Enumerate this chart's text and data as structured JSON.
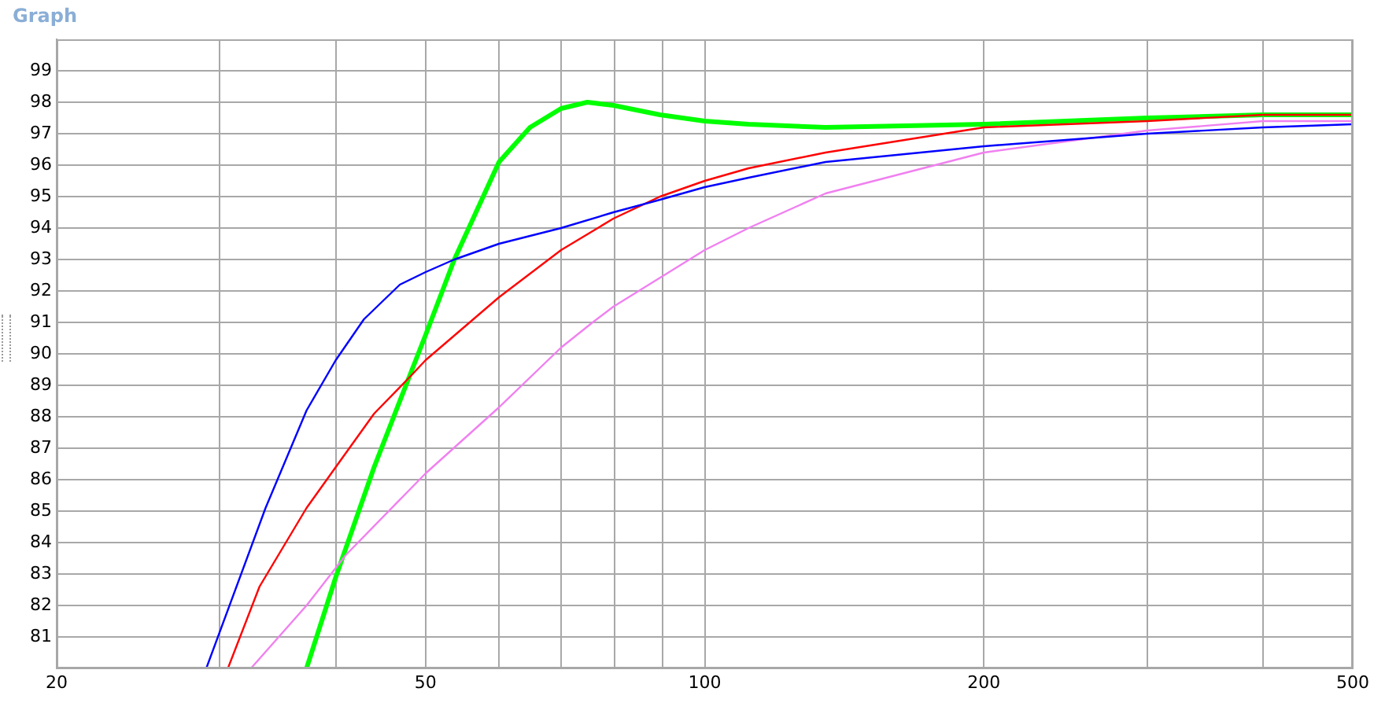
{
  "chart_data": {
    "type": "line",
    "title": "Graph",
    "log": "x",
    "xlim": [
      20,
      500
    ],
    "xticks": [
      20,
      {
        "value": 30,
        "label": null
      },
      {
        "value": 40,
        "label": null
      },
      50,
      {
        "value": 60,
        "label": null
      },
      {
        "value": 70,
        "label": null
      },
      {
        "value": 80,
        "label": null
      },
      {
        "value": 90,
        "label": null
      },
      100,
      200,
      {
        "value": 300,
        "label": null
      },
      {
        "value": 400,
        "label": null
      },
      500
    ],
    "ylim": [
      80,
      100
    ],
    "yticks": [
      81,
      82,
      83,
      84,
      85,
      86,
      87,
      88,
      89,
      90,
      91,
      92,
      93,
      94,
      95,
      96,
      97,
      98,
      99
    ],
    "grid": true,
    "legend": false,
    "marker": "none",
    "line_style": "solid",
    "series": [
      {
        "color": "#0000ff",
        "x": [
          29,
          33.6,
          37.2,
          40,
          42.9,
          46.9,
          50,
          53.7,
          60,
          70,
          79.7,
          89.5,
          100,
          111.5,
          135,
          200,
          300,
          400,
          500
        ],
        "values": [
          80,
          85.1,
          88.2,
          89.8,
          91.1,
          92.2,
          92.6,
          93,
          93.5,
          94,
          94.5,
          94.9,
          95.3,
          95.6,
          96.1,
          96.6,
          97,
          97.2,
          97.3
        ]
      },
      {
        "color": "#ff0000",
        "x": [
          30.6,
          33.1,
          37.2,
          40,
          44,
          48.2,
          50,
          60,
          70,
          79.7,
          89.5,
          100,
          111.5,
          135,
          200,
          300,
          400,
          500
        ],
        "values": [
          80,
          82.6,
          85.1,
          86.4,
          88.1,
          89.3,
          89.8,
          91.8,
          93.3,
          94.3,
          95,
          95.5,
          95.9,
          96.4,
          97.2,
          97.4,
          97.6,
          97.6
        ]
      },
      {
        "color": "#f080f0",
        "x": [
          32.4,
          37.2,
          41,
          50,
          60,
          70,
          75.7,
          79.7,
          100,
          111.5,
          135,
          200,
          300,
          400,
          500
        ],
        "values": [
          80,
          82,
          83.6,
          86.2,
          88.3,
          90.2,
          91,
          91.5,
          93.3,
          94,
          95.1,
          96.4,
          97.1,
          97.4,
          97.4
        ]
      },
      {
        "color": "#00ff00",
        "x": [
          37.2,
          40,
          44,
          48.2,
          50,
          53.7,
          60,
          64.8,
          70,
          74.7,
          79.7,
          89.5,
          100,
          111.5,
          135,
          200,
          300,
          400,
          500
        ],
        "values": [
          80,
          82.9,
          86.4,
          89.4,
          90.6,
          93,
          96.1,
          97.2,
          97.8,
          98,
          97.9,
          97.6,
          97.4,
          97.3,
          97.2,
          97.3,
          97.5,
          97.6,
          97.6
        ]
      }
    ]
  }
}
